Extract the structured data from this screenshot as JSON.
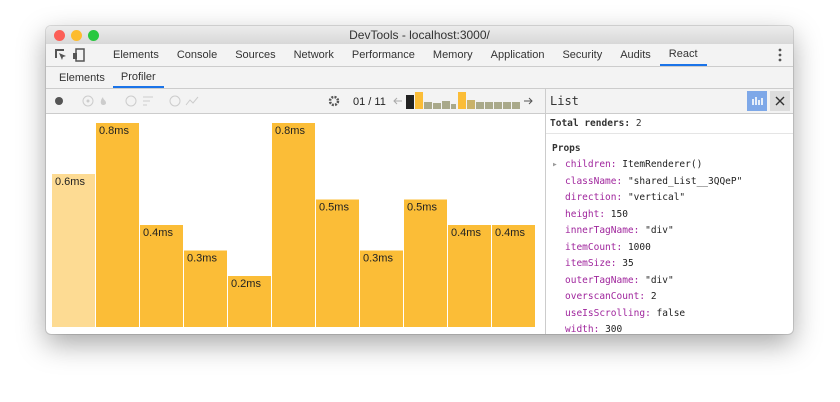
{
  "window": {
    "title": "DevTools - localhost:3000/"
  },
  "tabs": {
    "items": [
      "Elements",
      "Console",
      "Sources",
      "Network",
      "Performance",
      "Memory",
      "Application",
      "Security",
      "Audits",
      "React"
    ],
    "active": "React"
  },
  "subtabs": {
    "items": [
      "Elements",
      "Profiler"
    ],
    "active": "Profiler"
  },
  "toolbar": {
    "commit_counter": "01 / 11"
  },
  "chart_data": {
    "type": "bar",
    "values": [
      0.6,
      0.8,
      0.4,
      0.3,
      0.2,
      0.8,
      0.5,
      0.3,
      0.5,
      0.4,
      0.4
    ],
    "value_labels": [
      "0.6ms",
      "0.8ms",
      "0.4ms",
      "0.3ms",
      "0.2ms",
      "0.8ms",
      "0.5ms",
      "0.3ms",
      "0.5ms",
      "0.4ms",
      "0.4ms"
    ],
    "colors": [
      "#fddb93",
      "#fbbd37",
      "#fbbd37",
      "#fbbd37",
      "#fbbd37",
      "#fbbd37",
      "#fbbd37",
      "#fbbd37",
      "#fbbd37",
      "#fbbd37",
      "#fbbd37"
    ]
  },
  "panel": {
    "title": "List",
    "total_renders_label": "Total renders:",
    "total_renders": "2",
    "props_heading": "Props",
    "props": [
      [
        "children:",
        "ItemRenderer()"
      ],
      [
        "className:",
        "\"shared_List__3QQeP\""
      ],
      [
        "direction:",
        "\"vertical\""
      ],
      [
        "height:",
        "150"
      ],
      [
        "innerTagName:",
        "\"div\""
      ],
      [
        "itemCount:",
        "1000"
      ],
      [
        "itemSize:",
        "35"
      ],
      [
        "outerTagName:",
        "\"div\""
      ],
      [
        "overscanCount:",
        "2"
      ],
      [
        "useIsScrolling:",
        "false"
      ],
      [
        "width:",
        "300"
      ]
    ]
  }
}
